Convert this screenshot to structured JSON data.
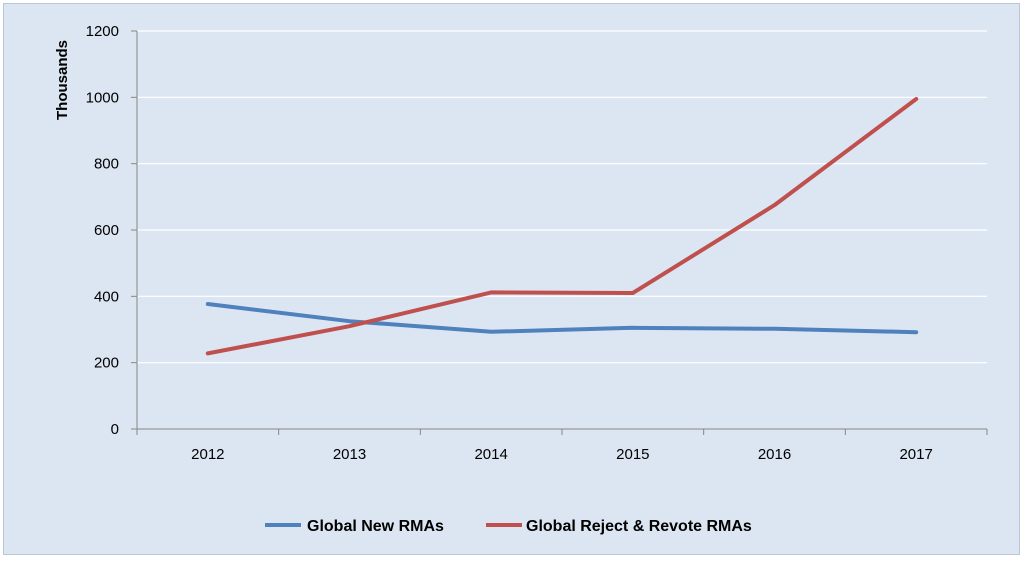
{
  "chart_data": {
    "type": "line",
    "title": "",
    "xlabel": "",
    "ylabel": "Thousands",
    "categories": [
      "2012",
      "2013",
      "2014",
      "2015",
      "2016",
      "2017"
    ],
    "ylim": [
      0,
      1200
    ],
    "yticks": [
      0,
      200,
      400,
      600,
      800,
      1000,
      1200
    ],
    "grid": true,
    "legend_position": "bottom",
    "series": [
      {
        "name": "Global New RMAs",
        "color": "#4f81bd",
        "values": [
          377,
          325,
          293,
          305,
          302,
          292
        ]
      },
      {
        "name": "Global Reject & Revote RMAs",
        "color": "#c0504d",
        "values": [
          228,
          310,
          412,
          410,
          675,
          995
        ]
      }
    ]
  }
}
